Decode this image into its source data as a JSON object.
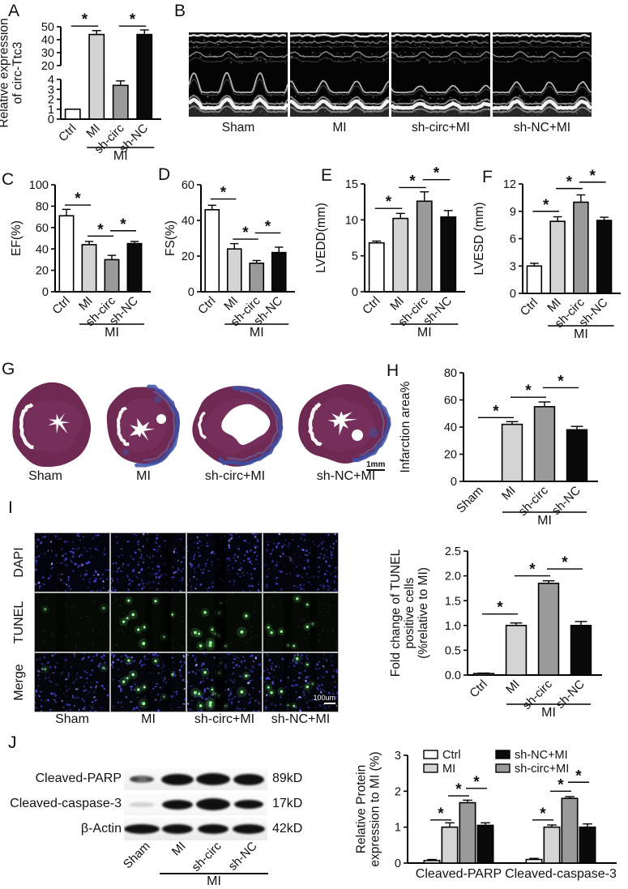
{
  "panel_letters": {
    "A": "A",
    "B": "B",
    "C": "C",
    "D": "D",
    "E": "E",
    "F": "F",
    "G": "G",
    "H": "H",
    "I": "I",
    "J": "J"
  },
  "colors": {
    "bar_white": "#ffffff",
    "bar_light_gray": "#d4d4d4",
    "bar_dark_gray": "#9a9a9a",
    "bar_black": "#0a0a0a",
    "heart_tissue": "#6e2a52",
    "fibrosis_blue": "#3c50a6",
    "dapi_blue": "#4747d8",
    "tunel_green": "#97f497"
  },
  "panel_b": {
    "labels": [
      "Sham",
      "MI",
      "sh-circ+MI",
      "sh-NC+MI"
    ]
  },
  "panel_g": {
    "labels": [
      "Sham",
      "MI",
      "sh-circ+MI",
      "sh-NC+MI"
    ],
    "scale_label": "1mm"
  },
  "panel_i": {
    "row_labels": [
      "DAPI",
      "TUNEL",
      "Merge"
    ],
    "col_labels": [
      "Sham",
      "MI",
      "sh-circ+MI",
      "sh-NC+MI"
    ],
    "scale_label": "100um",
    "tunel_dot_counts": [
      2,
      10,
      14,
      9
    ]
  },
  "panel_j": {
    "rows": [
      {
        "protein": "Cleaved-PARP",
        "mw": "89kD"
      },
      {
        "protein": "Cleaved-caspase-3",
        "mw": "17kD"
      },
      {
        "protein": "β-Actin",
        "mw": "42kD"
      }
    ],
    "lanes": [
      "Sham",
      "MI",
      "sh-circ",
      "sh-NC"
    ],
    "group_label": "MI"
  },
  "chart_data": [
    {
      "id": "A",
      "type": "bar",
      "ylabel_lines": [
        "Relative expression",
        "of circ-Ttc3"
      ],
      "categories": [
        "Ctrl",
        "MI",
        "sh-circ",
        "sh-NC"
      ],
      "values": [
        1,
        44,
        3.4,
        44
      ],
      "errors": [
        0,
        3,
        0.45,
        3.5
      ],
      "bar_colors": [
        "#ffffff",
        "#d4d4d4",
        "#9a9a9a",
        "#0a0a0a"
      ],
      "scale_breaks": [
        [
          0,
          0
        ],
        [
          4,
          0.43
        ],
        [
          20,
          0.58
        ],
        [
          50,
          1
        ]
      ],
      "axis_segments": [
        [
          0,
          0.43
        ],
        [
          0.58,
          1
        ]
      ],
      "yticks": [
        {
          "v": 0,
          "t": "0"
        },
        {
          "v": 1,
          "t": "1"
        },
        {
          "v": 2,
          "t": "2"
        },
        {
          "v": 3,
          "t": "3"
        },
        {
          "v": 4,
          "t": "4"
        },
        {
          "v": 20,
          "t": "20"
        },
        {
          "v": 30,
          "t": "30"
        },
        {
          "v": 40,
          "t": "40"
        },
        {
          "v": 50,
          "t": "50"
        }
      ],
      "sig": [
        {
          "a": 0,
          "b": 1,
          "y": 50.5
        },
        {
          "a": 2,
          "b": 3,
          "y": 50.5
        }
      ],
      "xlabel_rotate": true,
      "group_label": {
        "text": "MI",
        "from": 1,
        "to": 3,
        "dy": 35
      }
    },
    {
      "id": "C",
      "type": "bar",
      "ylabel_lines": [
        "EF(%)"
      ],
      "categories": [
        "Ctrl",
        "MI",
        "sh-circ",
        "sh-NC"
      ],
      "values": [
        71,
        44,
        30,
        45
      ],
      "errors": [
        6,
        3,
        4,
        2
      ],
      "bar_colors": [
        "#ffffff",
        "#d4d4d4",
        "#9a9a9a",
        "#0a0a0a"
      ],
      "scale_breaks": [
        [
          0,
          0
        ],
        [
          100,
          1
        ]
      ],
      "yticks": [
        {
          "v": 0,
          "t": "0"
        },
        {
          "v": 20,
          "t": "20"
        },
        {
          "v": 40,
          "t": "40"
        },
        {
          "v": 60,
          "t": "60"
        },
        {
          "v": 80,
          "t": "80"
        },
        {
          "v": 100,
          "t": "100"
        }
      ],
      "sig": [
        {
          "a": 0,
          "b": 1,
          "y": 81
        },
        {
          "a": 1,
          "b": 2,
          "y": 52
        },
        {
          "a": 2,
          "b": 3,
          "y": 57
        }
      ],
      "xlabel_rotate": true,
      "group_label": {
        "text": "MI",
        "from": 1,
        "to": 3,
        "dy": 40
      }
    },
    {
      "id": "D",
      "type": "bar",
      "ylabel_lines": [
        "FS(%)"
      ],
      "categories": [
        "Ctrl",
        "MI",
        "sh-circ",
        "sh-NC"
      ],
      "values": [
        46,
        24,
        16,
        22
      ],
      "errors": [
        2.5,
        3,
        1.5,
        3
      ],
      "bar_colors": [
        "#ffffff",
        "#d4d4d4",
        "#9a9a9a",
        "#0a0a0a"
      ],
      "scale_breaks": [
        [
          0,
          0
        ],
        [
          60,
          1
        ]
      ],
      "yticks": [
        {
          "v": 0,
          "t": "0"
        },
        {
          "v": 20,
          "t": "20"
        },
        {
          "v": 40,
          "t": "40"
        },
        {
          "v": 60,
          "t": "60"
        }
      ],
      "sig": [
        {
          "a": 0,
          "b": 1,
          "y": 52
        },
        {
          "a": 1,
          "b": 2,
          "y": 29.5
        },
        {
          "a": 2,
          "b": 3,
          "y": 33
        }
      ],
      "xlabel_rotate": true,
      "group_label": {
        "text": "MI",
        "from": 1,
        "to": 3,
        "dy": 40
      }
    },
    {
      "id": "E",
      "type": "bar",
      "ylabel_lines": [
        "LVEDD(mm)"
      ],
      "categories": [
        "Ctrl",
        "MI",
        "sh-circ",
        "sh-NC"
      ],
      "values": [
        6.8,
        10.2,
        12.6,
        10.4
      ],
      "errors": [
        0.25,
        0.7,
        1.3,
        0.9
      ],
      "bar_colors": [
        "#ffffff",
        "#d4d4d4",
        "#9a9a9a",
        "#0a0a0a"
      ],
      "scale_breaks": [
        [
          0,
          0
        ],
        [
          15,
          1
        ]
      ],
      "yticks": [
        {
          "v": 0,
          "t": "0"
        },
        {
          "v": 5,
          "t": "5"
        },
        {
          "v": 10,
          "t": "10"
        },
        {
          "v": 15,
          "t": "15"
        }
      ],
      "sig": [
        {
          "a": 0,
          "b": 1,
          "y": 11.6
        },
        {
          "a": 1,
          "b": 2,
          "y": 14.5
        },
        {
          "a": 2,
          "b": 3,
          "y": 15.6
        }
      ],
      "xlabel_rotate": true,
      "group_label": {
        "text": "MI",
        "from": 1,
        "to": 3,
        "dy": 40
      }
    },
    {
      "id": "F",
      "type": "bar",
      "ylabel_lines": [
        "LVESD (mm)"
      ],
      "categories": [
        "Ctrl",
        "MI",
        "sh-circ",
        "sh-NC"
      ],
      "values": [
        3,
        7.9,
        10,
        8
      ],
      "errors": [
        0.3,
        0.5,
        0.8,
        0.35
      ],
      "bar_colors": [
        "#ffffff",
        "#d4d4d4",
        "#9a9a9a",
        "#0a0a0a"
      ],
      "scale_breaks": [
        [
          0,
          0
        ],
        [
          12,
          1
        ]
      ],
      "yticks": [
        {
          "v": 0,
          "t": "0"
        },
        {
          "v": 3,
          "t": "3"
        },
        {
          "v": 6,
          "t": "6"
        },
        {
          "v": 9,
          "t": "9"
        },
        {
          "v": 12,
          "t": "12"
        }
      ],
      "sig": [
        {
          "a": 0,
          "b": 1,
          "y": 9
        },
        {
          "a": 1,
          "b": 2,
          "y": 11.5
        },
        {
          "a": 2,
          "b": 3,
          "y": 12.2
        }
      ],
      "xlabel_rotate": true,
      "group_label": {
        "text": "MI",
        "from": 1,
        "to": 3,
        "dy": 40
      }
    },
    {
      "id": "H",
      "type": "bar",
      "ylabel_lines": [
        "Infarction area%"
      ],
      "categories": [
        "Sham",
        "MI",
        "sh-circ",
        "sh-NC"
      ],
      "values": [
        0,
        42,
        55,
        38
      ],
      "errors": [
        0,
        2,
        3.5,
        2.5
      ],
      "bar_colors": [
        "#ffffff",
        "#d4d4d4",
        "#9a9a9a",
        "#0a0a0a"
      ],
      "scale_breaks": [
        [
          0,
          0
        ],
        [
          80,
          1
        ]
      ],
      "yticks": [
        {
          "v": 0,
          "t": "0"
        },
        {
          "v": 20,
          "t": "20"
        },
        {
          "v": 40,
          "t": "40"
        },
        {
          "v": 60,
          "t": "60"
        },
        {
          "v": 80,
          "t": "80"
        }
      ],
      "sig": [
        {
          "a": 0,
          "b": 1,
          "y": 47
        },
        {
          "a": 1,
          "b": 2,
          "y": 62
        },
        {
          "a": 2,
          "b": 3,
          "y": 69
        }
      ],
      "xlabel_rotate": true,
      "group_label": {
        "text": "MI",
        "from": 1,
        "to": 3,
        "dy": 38
      }
    },
    {
      "id": "I",
      "type": "bar",
      "ylabel_lines": [
        "Fold change of TUNEL",
        "positive cells",
        "(%relative to MI)"
      ],
      "categories": [
        "Ctrl",
        "MI",
        "sh-circ",
        "sh-NC"
      ],
      "values": [
        0.03,
        1.0,
        1.85,
        1.0
      ],
      "errors": [
        0.01,
        0.05,
        0.05,
        0.08
      ],
      "bar_colors": [
        "#ffffff",
        "#d4d4d4",
        "#9a9a9a",
        "#0a0a0a"
      ],
      "scale_breaks": [
        [
          0,
          0
        ],
        [
          2.5,
          1
        ]
      ],
      "yticks": [
        {
          "v": 0,
          "t": "0.0"
        },
        {
          "v": 0.5,
          "t": "0.5"
        },
        {
          "v": 1,
          "t": "1.0"
        },
        {
          "v": 1.5,
          "t": "1.5"
        },
        {
          "v": 2,
          "t": "2.0"
        },
        {
          "v": 2.5,
          "t": "2.5"
        }
      ],
      "sig": [
        {
          "a": 0,
          "b": 1,
          "y": 1.23
        },
        {
          "a": 1,
          "b": 2,
          "y": 2.0
        },
        {
          "a": 2,
          "b": 3,
          "y": 2.14
        }
      ],
      "xlabel_rotate": true,
      "group_label": {
        "text": "MI",
        "from": 1,
        "to": 3,
        "dy": 36
      }
    },
    {
      "id": "J",
      "type": "grouped_bar",
      "ylabel_lines": [
        "Relative Protein",
        "expression to MI (%)"
      ],
      "categories": [
        "Cleaved-PARP",
        "Cleaved-caspase-3"
      ],
      "series": [
        {
          "name": "Ctrl",
          "color": "#ffffff",
          "values": [
            0.07,
            0.1
          ],
          "errors": [
            0.03,
            0.03
          ]
        },
        {
          "name": "MI",
          "color": "#d4d4d4",
          "values": [
            1.0,
            1.0
          ],
          "errors": [
            0.12,
            0.06
          ]
        },
        {
          "name": "sh-circ+MI",
          "color": "#9a9a9a",
          "values": [
            1.68,
            1.8
          ],
          "errors": [
            0.07,
            0.05
          ]
        },
        {
          "name": "sh-NC+MI",
          "color": "#0a0a0a",
          "values": [
            1.05,
            1.0
          ],
          "errors": [
            0.07,
            0.09
          ]
        }
      ],
      "scale_breaks": [
        [
          0,
          0
        ],
        [
          3,
          1
        ]
      ],
      "yticks": [
        {
          "v": 0,
          "t": "0"
        },
        {
          "v": 1,
          "t": "1"
        },
        {
          "v": 2,
          "t": "2"
        },
        {
          "v": 3,
          "t": "3"
        }
      ],
      "sig": [
        {
          "g": 0,
          "a": 0,
          "b": 1,
          "y": 1.2
        },
        {
          "g": 0,
          "a": 1,
          "b": 2,
          "y": 1.87
        },
        {
          "g": 0,
          "a": 2,
          "b": 3,
          "y": 2.08
        },
        {
          "g": 1,
          "a": 0,
          "b": 1,
          "y": 1.2
        },
        {
          "g": 1,
          "a": 1,
          "b": 2,
          "y": 2.0
        },
        {
          "g": 1,
          "a": 2,
          "b": 3,
          "y": 2.25
        }
      ],
      "legend": [
        {
          "label": "Ctrl",
          "color": "#ffffff"
        },
        {
          "label": "MI",
          "color": "#d4d4d4"
        },
        {
          "label": "sh-NC+MI",
          "color": "#0a0a0a"
        },
        {
          "label": "sh-circ+MI",
          "color": "#9a9a9a"
        }
      ],
      "legend_colw": 89
    }
  ]
}
